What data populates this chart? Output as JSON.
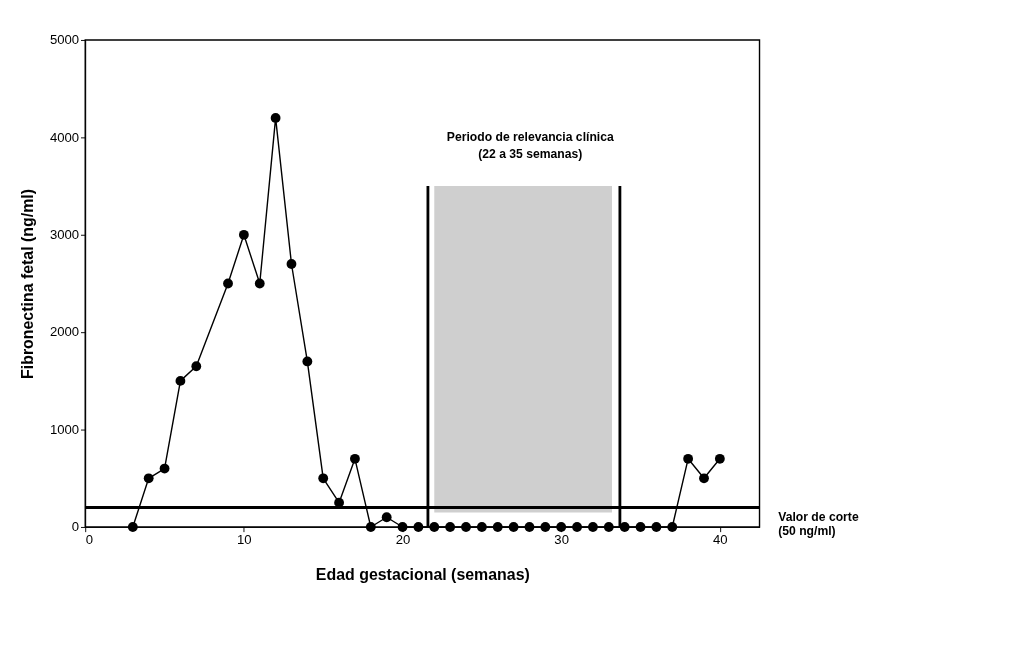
{
  "chart_data": {
    "type": "line",
    "xlabel": "Edad gestacional (semanas)",
    "ylabel": "Fibronectina fetal (ng/ml)",
    "x": [
      3,
      4,
      5,
      6,
      7,
      9,
      10,
      11,
      12,
      13,
      14,
      15,
      16,
      17,
      18,
      19,
      20,
      21,
      22,
      23,
      24,
      25,
      26,
      27,
      28,
      29,
      30,
      31,
      32,
      33,
      34,
      35,
      36,
      37,
      38,
      39,
      40
    ],
    "series": [
      {
        "color": "#000000",
        "values": [
          0,
          500,
          600,
          1500,
          1650,
          2500,
          3000,
          2500,
          4200,
          2700,
          1700,
          500,
          250,
          700,
          0,
          100,
          0,
          0,
          0,
          0,
          0,
          0,
          0,
          0,
          0,
          0,
          0,
          0,
          0,
          0,
          0,
          0,
          0,
          0,
          700,
          500,
          700
        ]
      }
    ],
    "xlim": [
      0,
      42.5
    ],
    "xticks": [
      0,
      10,
      20,
      30,
      40
    ],
    "ylim": [
      0,
      5000
    ],
    "yticks": [
      0,
      1000,
      2000,
      3000,
      4000,
      5000
    ],
    "ref_lines": [
      {
        "axis": "x",
        "value": 21.6,
        "color": "#000000"
      },
      {
        "axis": "x",
        "value": 33.7,
        "color": "#000000"
      },
      {
        "axis": "y",
        "value": 200,
        "label": "Valor de corte\n(50 ng/ml)",
        "color": "#000000"
      }
    ],
    "bands": [
      {
        "axis": "x",
        "from": 22,
        "to": 33.2,
        "color": "#cfcfcf"
      }
    ],
    "annotations": [
      "Periodo de relevancia clínica\n(22 a 35 semanas)"
    ],
    "marker": "circle",
    "line_style": "solid",
    "grid": false
  }
}
